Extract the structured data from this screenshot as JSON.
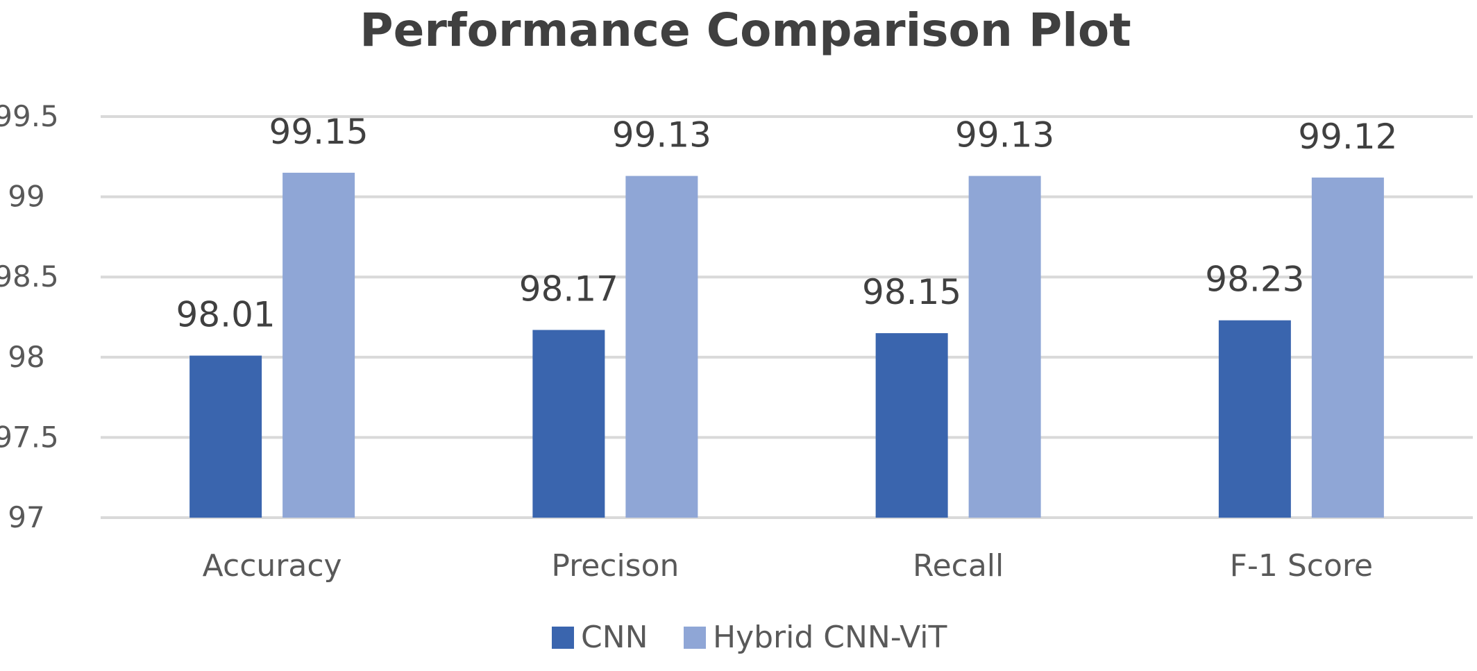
{
  "chart_data": {
    "type": "bar",
    "title": "Performance Comparison Plot",
    "xlabel": "",
    "ylabel": "",
    "categories": [
      "Accuracy",
      "Precison",
      "Recall",
      "F-1 Score"
    ],
    "series": [
      {
        "name": "CNN",
        "values": [
          98.01,
          98.17,
          98.15,
          98.23
        ],
        "color": "#3a65ae"
      },
      {
        "name": "Hybrid CNN-ViT",
        "values": [
          99.15,
          99.13,
          99.13,
          99.12
        ],
        "color": "#8fa6d6"
      }
    ],
    "data_labels": [
      [
        "98.01",
        "98.17",
        "98.15",
        "98.23"
      ],
      [
        "99.15",
        "99.13",
        "99.13",
        "99.12"
      ]
    ],
    "ylim": [
      97,
      99.5
    ],
    "yticks": [
      97,
      97.5,
      98,
      98.5,
      99,
      99.5
    ],
    "ytick_labels": [
      "97",
      "97.5",
      "98",
      "98.5",
      "99",
      "99.5"
    ],
    "grid": true,
    "legend_position": "bottom"
  }
}
